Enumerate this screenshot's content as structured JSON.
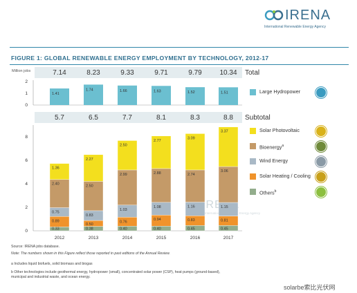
{
  "header": {
    "logo_name": "IRENA",
    "logo_subtitle": "International Renewable Energy Agency",
    "figure_title": "FIGURE 1: GLOBAL RENEWABLE ENERGY EMPLOYMENT BY TECHNOLOGY, 2012-17"
  },
  "totals": {
    "axis_unit": "Million jobs",
    "label": "Total",
    "values": [
      "7.14",
      "8.23",
      "9.33",
      "9.71",
      "9.79",
      "10.34"
    ]
  },
  "subtotals": {
    "label": "Subtotal",
    "values": [
      "5.7",
      "6.5",
      "7.7",
      "8.1",
      "8.3",
      "8.8"
    ]
  },
  "colors": {
    "hydropower": "#6bbfd0",
    "solar_pv": "#f3df1e",
    "bioenergy": "#c49a68",
    "wind": "#a9b9c6",
    "solar_heating": "#f0932b",
    "others": "#93ad8c",
    "accent": "#2f86a8",
    "header_band": "#e4ecef"
  },
  "legend": [
    {
      "key": "hydropower",
      "label": "Large Hydropower",
      "icon": "water-drop-icon"
    },
    {
      "key": "solar_pv",
      "label": "Solar Photovoltaic",
      "icon": "sun-icon"
    },
    {
      "key": "bioenergy",
      "label": "Bioenergy",
      "sup": "a",
      "icon": "leaf-icon"
    },
    {
      "key": "wind",
      "label": "Wind Energy",
      "icon": "wind-turbine-icon"
    },
    {
      "key": "solar_heating",
      "label": "Solar Heating / Cooling",
      "icon": "solar-heater-icon"
    },
    {
      "key": "others",
      "label": "Others",
      "sup": "b",
      "icon": "plus-icon"
    }
  ],
  "notes": {
    "source": "Source: IRENA jobs database.",
    "note": "Note: The numbers shown in this Figure reflect those reported in past editions of the Annual Review.",
    "a": "a  Includes liquid biofuels, solid biomass and biogas",
    "b1": "b  Other technologies include geothermal energy, hydropower (small), concentrated solar power (CSP), heat pumps (ground-based),",
    "b2": "   municipal and industrial waste, and ocean energy."
  },
  "watermark": {
    "text": "solarbe索比光伏网",
    "logo_name": "IRENA",
    "logo_subtitle": "International Renewable Energy Agency"
  },
  "chart_data": [
    {
      "type": "bar",
      "categories": [
        "2012",
        "2013",
        "2014",
        "2015",
        "2016",
        "2017"
      ],
      "series": [
        {
          "name": "Large Hydropower",
          "values": [
            1.41,
            1.74,
            1.66,
            1.63,
            1.52,
            1.51
          ]
        }
      ],
      "ylabel": "Million jobs",
      "ylim": [
        0,
        2
      ],
      "yticks": [
        0,
        1,
        2
      ],
      "grid": false
    },
    {
      "type": "bar",
      "stacked": true,
      "categories": [
        "2012",
        "2013",
        "2014",
        "2015",
        "2016",
        "2017"
      ],
      "series": [
        {
          "name": "Others",
          "values": [
            0.33,
            0.38,
            0.4,
            0.4,
            0.45,
            0.45
          ]
        },
        {
          "name": "Solar Heating / Cooling",
          "values": [
            0.89,
            0.5,
            0.76,
            0.94,
            0.83,
            0.81
          ]
        },
        {
          "name": "Wind Energy",
          "values": [
            0.75,
            0.83,
            1.03,
            1.08,
            1.16,
            1.15
          ]
        },
        {
          "name": "Bioenergy",
          "values": [
            2.4,
            2.5,
            2.99,
            2.88,
            2.74,
            3.06
          ]
        },
        {
          "name": "Solar Photovoltaic",
          "values": [
            1.36,
            2.27,
            2.5,
            2.77,
            3.09,
            3.37
          ]
        }
      ],
      "ylim": [
        0,
        9
      ],
      "yticks": [
        0,
        2,
        4,
        6,
        8
      ],
      "grid": false,
      "legend_position": "right"
    }
  ]
}
